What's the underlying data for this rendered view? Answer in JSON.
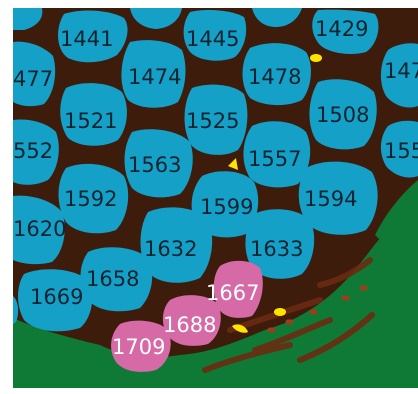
{
  "image": {
    "background_color": "#ffffff",
    "tissue_color": "#1e1208",
    "interstitial_color": "#6b2a12",
    "green_region_color": "#0f7a35",
    "cell_colors": {
      "default": "#15a0c8",
      "highlighted": "#d66aa6"
    },
    "yellow_marker_color": "#ffe400"
  },
  "cells": [
    {
      "id": "1441",
      "label": "1441",
      "type": "default"
    },
    {
      "id": "1445",
      "label": "1445",
      "type": "default"
    },
    {
      "id": "1429",
      "label": "1429",
      "type": "default"
    },
    {
      "id": "477",
      "label": "477",
      "type": "default"
    },
    {
      "id": "1474",
      "label": "1474",
      "type": "default"
    },
    {
      "id": "1478",
      "label": "1478",
      "type": "default"
    },
    {
      "id": "147",
      "label": "147",
      "type": "default"
    },
    {
      "id": "1521",
      "label": "1521",
      "type": "default"
    },
    {
      "id": "1525",
      "label": "1525",
      "type": "default"
    },
    {
      "id": "1508",
      "label": "1508",
      "type": "default"
    },
    {
      "id": "552",
      "label": "552",
      "type": "default"
    },
    {
      "id": "1563",
      "label": "1563",
      "type": "default"
    },
    {
      "id": "1557",
      "label": "1557",
      "type": "default"
    },
    {
      "id": "155",
      "label": "155",
      "type": "default"
    },
    {
      "id": "1592",
      "label": "1592",
      "type": "default"
    },
    {
      "id": "1599",
      "label": "1599",
      "type": "default"
    },
    {
      "id": "1594",
      "label": "1594",
      "type": "default"
    },
    {
      "id": "1620",
      "label": "1620",
      "type": "default"
    },
    {
      "id": "1632",
      "label": "1632",
      "type": "default"
    },
    {
      "id": "1633",
      "label": "1633",
      "type": "default"
    },
    {
      "id": "1658",
      "label": "1658",
      "type": "default"
    },
    {
      "id": "1669",
      "label": "1669",
      "type": "default"
    },
    {
      "id": "1667",
      "label": "1667",
      "type": "highlighted"
    },
    {
      "id": "1688",
      "label": "1688",
      "type": "highlighted"
    },
    {
      "id": "1709",
      "label": "1709",
      "type": "highlighted"
    }
  ]
}
